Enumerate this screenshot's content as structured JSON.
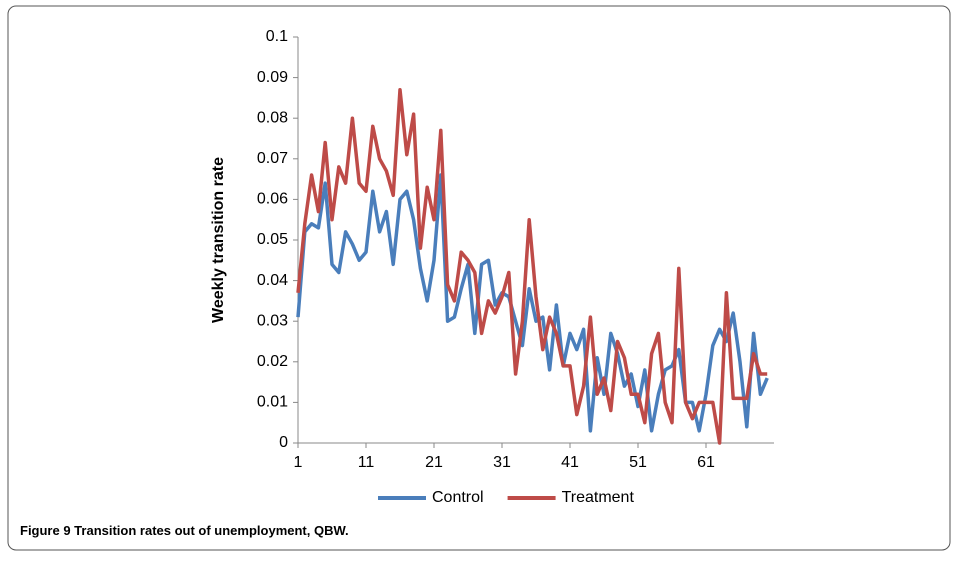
{
  "chart_data": {
    "type": "line",
    "y_label": "Weekly transition rate",
    "caption": "Figure 9 Transition rates out of unemployment, QBW.",
    "x": [
      1,
      2,
      3,
      4,
      5,
      6,
      7,
      8,
      9,
      10,
      11,
      12,
      13,
      14,
      15,
      16,
      17,
      18,
      19,
      20,
      21,
      22,
      23,
      24,
      25,
      26,
      27,
      28,
      29,
      30,
      31,
      32,
      33,
      34,
      35,
      36,
      37,
      38,
      39,
      40,
      41,
      42,
      43,
      44,
      45,
      46,
      47,
      48,
      49,
      50,
      51,
      52,
      53,
      54,
      55,
      56,
      57,
      58,
      59,
      60,
      61,
      62,
      63,
      64,
      65,
      66,
      67,
      68,
      69,
      70
    ],
    "xlim": [
      1,
      71
    ],
    "xticks": [
      1,
      11,
      21,
      31,
      41,
      51,
      61
    ],
    "ylim": [
      0,
      0.1
    ],
    "yticks": [
      0,
      0.01,
      0.02,
      0.03,
      0.04,
      0.05,
      0.06,
      0.07,
      0.08,
      0.09,
      0.1
    ],
    "grid": false,
    "legend": "bottom",
    "series": [
      {
        "name": "Control",
        "color": "#4a7ebb",
        "values": [
          0.031,
          0.052,
          0.054,
          0.053,
          0.064,
          0.044,
          0.042,
          0.052,
          0.049,
          0.045,
          0.047,
          0.062,
          0.052,
          0.057,
          0.044,
          0.06,
          0.062,
          0.055,
          0.043,
          0.035,
          0.045,
          0.066,
          0.03,
          0.031,
          0.038,
          0.044,
          0.027,
          0.044,
          0.045,
          0.034,
          0.037,
          0.036,
          0.03,
          0.024,
          0.038,
          0.03,
          0.031,
          0.018,
          0.034,
          0.019,
          0.027,
          0.023,
          0.028,
          0.003,
          0.021,
          0.012,
          0.027,
          0.022,
          0.014,
          0.017,
          0.009,
          0.018,
          0.003,
          0.012,
          0.018,
          0.019,
          0.023,
          0.01,
          0.01,
          0.003,
          0.012,
          0.024,
          0.028,
          0.025,
          0.032,
          0.02,
          0.004,
          0.027,
          0.012,
          0.016
        ]
      },
      {
        "name": "Treatment",
        "color": "#be4b48",
        "values": [
          0.037,
          0.054,
          0.066,
          0.057,
          0.074,
          0.055,
          0.068,
          0.064,
          0.08,
          0.064,
          0.062,
          0.078,
          0.07,
          0.067,
          0.061,
          0.087,
          0.071,
          0.081,
          0.048,
          0.063,
          0.055,
          0.077,
          0.039,
          0.035,
          0.047,
          0.045,
          0.042,
          0.027,
          0.035,
          0.032,
          0.036,
          0.042,
          0.017,
          0.03,
          0.055,
          0.036,
          0.023,
          0.031,
          0.027,
          0.019,
          0.019,
          0.007,
          0.014,
          0.031,
          0.012,
          0.016,
          0.008,
          0.025,
          0.021,
          0.012,
          0.012,
          0.005,
          0.022,
          0.027,
          0.01,
          0.005,
          0.043,
          0.01,
          0.006,
          0.01,
          0.01,
          0.01,
          0.0,
          0.037,
          0.011,
          0.011,
          0.011,
          0.022,
          0.017,
          0.017
        ]
      }
    ]
  }
}
